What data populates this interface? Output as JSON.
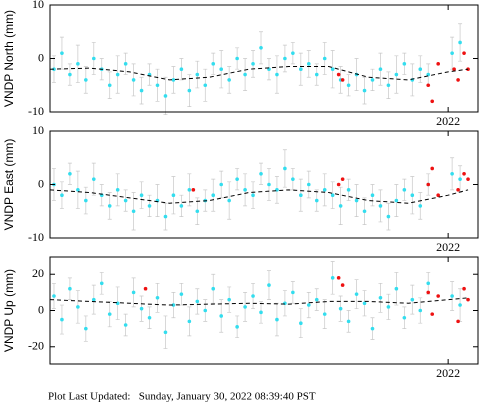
{
  "chart_data": [
    {
      "type": "scatter",
      "ylabel": "VNDP North (mm)",
      "xlim": [
        2020.0,
        2022.15
      ],
      "xticks": [
        2022
      ],
      "ylim": [
        -10,
        10
      ],
      "yticks": [
        -10,
        0,
        10
      ],
      "series": [
        {
          "color": "#33ddee",
          "x": [
            2020.02,
            2020.06,
            2020.1,
            2020.14,
            2020.18,
            2020.22,
            2020.26,
            2020.3,
            2020.34,
            2020.38,
            2020.42,
            2020.46,
            2020.5,
            2020.54,
            2020.58,
            2020.62,
            2020.66,
            2020.7,
            2020.74,
            2020.78,
            2020.82,
            2020.86,
            2020.9,
            2020.94,
            2020.98,
            2021.02,
            2021.06,
            2021.1,
            2021.14,
            2021.18,
            2021.22,
            2021.26,
            2021.3,
            2021.34,
            2021.38,
            2021.42,
            2021.46,
            2021.5,
            2021.54,
            2021.58,
            2021.62,
            2021.66,
            2021.7,
            2021.74,
            2021.78,
            2021.82,
            2021.86,
            2021.9,
            2022.02,
            2022.06
          ],
          "values": [
            -2,
            1,
            -3,
            -1,
            -4,
            0,
            -2,
            -5,
            -3,
            -1,
            -4,
            -6,
            -3,
            -5,
            -7,
            -4,
            -2,
            -6,
            -3,
            -5,
            -1,
            -2,
            -4,
            0,
            -3,
            -1,
            2,
            -2,
            -3,
            0,
            1,
            -2,
            -1,
            -3,
            0,
            -2,
            -4,
            -5,
            -3,
            -6,
            -4,
            -2,
            -5,
            -3,
            -1,
            -4,
            -2,
            -3,
            1,
            3
          ],
          "errors": [
            2.5,
            3,
            2,
            3.5,
            2.5,
            3,
            2,
            2.5,
            3.5,
            2,
            3,
            2.5,
            2,
            3,
            3.5,
            2.5,
            2,
            3,
            2.5,
            3,
            2,
            3.5,
            2.5,
            2,
            3,
            2.5,
            3,
            2,
            3.5,
            2.5,
            2,
            3,
            2.5,
            2,
            3,
            3.5,
            2.5,
            2,
            3,
            2.5,
            2,
            3,
            2.5,
            3.5,
            2,
            3,
            2.5,
            2,
            3,
            3.5
          ]
        },
        {
          "color": "#ee1111",
          "x": [
            2021.45,
            2021.47,
            2021.9,
            2021.92,
            2021.95,
            2022.03,
            2022.05,
            2022.08,
            2022.1
          ],
          "values": [
            -3,
            -4,
            -5,
            -8,
            -1,
            -2,
            -4,
            1,
            -2
          ]
        },
        {
          "color": "#000000",
          "dashed": true,
          "x": [
            2020.0,
            2020.2,
            2020.4,
            2020.6,
            2020.8,
            2021.0,
            2021.2,
            2021.4,
            2021.6,
            2021.8,
            2022.0,
            2022.1
          ],
          "values": [
            -2,
            -1.8,
            -2.5,
            -4,
            -3.5,
            -2,
            -1.5,
            -1.5,
            -3.5,
            -4,
            -2.5,
            -2
          ]
        }
      ]
    },
    {
      "type": "scatter",
      "ylabel": "VNDP East (mm)",
      "xlim": [
        2020.0,
        2022.15
      ],
      "xticks": [
        2022
      ],
      "ylim": [
        -10,
        10
      ],
      "yticks": [
        -10,
        0,
        10
      ],
      "series": [
        {
          "color": "#33ddee",
          "x": [
            2020.02,
            2020.06,
            2020.1,
            2020.14,
            2020.18,
            2020.22,
            2020.26,
            2020.3,
            2020.34,
            2020.38,
            2020.42,
            2020.46,
            2020.5,
            2020.54,
            2020.58,
            2020.62,
            2020.66,
            2020.7,
            2020.74,
            2020.78,
            2020.82,
            2020.86,
            2020.9,
            2020.94,
            2020.98,
            2021.02,
            2021.06,
            2021.1,
            2021.14,
            2021.18,
            2021.22,
            2021.26,
            2021.3,
            2021.34,
            2021.38,
            2021.42,
            2021.46,
            2021.5,
            2021.54,
            2021.58,
            2021.62,
            2021.66,
            2021.7,
            2021.74,
            2021.78,
            2021.82,
            2021.86,
            2021.9,
            2022.02,
            2022.06
          ],
          "values": [
            0,
            -2,
            2,
            -1,
            -3,
            1,
            -2,
            -4,
            -1,
            -3,
            -5,
            -2,
            -4,
            -3,
            -6,
            -2,
            -4,
            -1,
            -5,
            -3,
            -2,
            0,
            -3,
            1,
            -1,
            -2,
            2,
            0,
            -1,
            3,
            1,
            -2,
            0,
            -3,
            -1,
            -2,
            -4,
            -1,
            -3,
            -5,
            -2,
            -4,
            -6,
            -3,
            -1,
            -2,
            -4,
            0,
            2,
            1
          ],
          "errors": [
            3,
            2.5,
            2,
            3.5,
            2.5,
            3,
            2,
            2.5,
            3,
            2,
            3.5,
            2.5,
            2,
            3,
            2.5,
            3.5,
            2,
            3,
            2.5,
            2,
            3,
            2.5,
            3.5,
            2,
            3,
            2.5,
            2,
            3,
            2.5,
            3.5,
            2,
            3,
            2.5,
            2,
            3,
            2.5,
            3.5,
            2,
            3,
            2.5,
            2,
            3,
            2.5,
            3,
            2,
            3.5,
            2.5,
            2,
            3,
            2.5
          ]
        },
        {
          "color": "#ee1111",
          "x": [
            2020.72,
            2021.45,
            2021.47,
            2021.9,
            2021.92,
            2021.95,
            2022.05,
            2022.08,
            2022.1
          ],
          "values": [
            -1,
            0,
            1,
            0,
            3,
            -2,
            -1,
            2,
            1
          ]
        },
        {
          "color": "#000000",
          "dashed": true,
          "x": [
            2020.0,
            2020.2,
            2020.4,
            2020.6,
            2020.8,
            2021.0,
            2021.2,
            2021.4,
            2021.6,
            2021.8,
            2022.0,
            2022.1
          ],
          "values": [
            -1,
            -1.5,
            -2.5,
            -3.5,
            -3,
            -1.5,
            -1,
            -1.5,
            -3,
            -3.5,
            -2,
            -1
          ]
        }
      ]
    },
    {
      "type": "scatter",
      "ylabel": "VNDP Up (mm)",
      "xlim": [
        2020.0,
        2022.15
      ],
      "xticks": [
        2022
      ],
      "ylim": [
        -29.5,
        29.5
      ],
      "yticks": [
        -20,
        0,
        20
      ],
      "series": [
        {
          "color": "#33ddee",
          "x": [
            2020.02,
            2020.06,
            2020.1,
            2020.14,
            2020.18,
            2020.22,
            2020.26,
            2020.3,
            2020.34,
            2020.38,
            2020.42,
            2020.46,
            2020.5,
            2020.54,
            2020.58,
            2020.62,
            2020.66,
            2020.7,
            2020.74,
            2020.78,
            2020.82,
            2020.86,
            2020.9,
            2020.94,
            2020.98,
            2021.02,
            2021.06,
            2021.1,
            2021.14,
            2021.18,
            2021.22,
            2021.26,
            2021.3,
            2021.34,
            2021.38,
            2021.42,
            2021.46,
            2021.5,
            2021.54,
            2021.58,
            2021.62,
            2021.66,
            2021.7,
            2021.74,
            2021.78,
            2021.82,
            2021.86,
            2021.9,
            2022.02,
            2022.06
          ],
          "values": [
            8,
            -5,
            12,
            2,
            -10,
            6,
            15,
            -2,
            4,
            -8,
            10,
            1,
            -4,
            7,
            -12,
            3,
            9,
            -6,
            5,
            0,
            12,
            -3,
            6,
            -9,
            2,
            8,
            -1,
            14,
            -5,
            4,
            10,
            -7,
            3,
            6,
            -2,
            18,
            1,
            -6,
            9,
            4,
            -10,
            7,
            2,
            12,
            -4,
            6,
            0,
            15,
            8,
            3
          ],
          "errors": [
            7,
            8,
            6,
            9,
            7,
            8,
            6,
            7,
            9,
            6,
            8,
            7,
            6,
            8,
            9,
            7,
            6,
            8,
            7,
            6,
            8,
            9,
            7,
            6,
            8,
            7,
            6,
            8,
            9,
            7,
            6,
            8,
            7,
            6,
            8,
            9,
            7,
            6,
            8,
            7,
            6,
            8,
            7,
            9,
            6,
            8,
            7,
            6,
            8,
            9
          ]
        },
        {
          "color": "#ee1111",
          "x": [
            2020.48,
            2021.45,
            2021.47,
            2021.9,
            2021.92,
            2021.95,
            2022.05,
            2022.08,
            2022.1
          ],
          "values": [
            12,
            18,
            14,
            10,
            -2,
            8,
            -6,
            12,
            6
          ]
        },
        {
          "color": "#000000",
          "dashed": true,
          "x": [
            2020.0,
            2020.2,
            2020.4,
            2020.6,
            2020.8,
            2021.0,
            2021.2,
            2021.4,
            2021.6,
            2021.8,
            2022.0,
            2022.1
          ],
          "values": [
            6,
            5,
            4,
            3,
            3.5,
            4,
            3.5,
            5,
            5,
            4,
            6,
            7
          ]
        }
      ]
    }
  ],
  "footer": "Plot Last Updated:   Sunday, January 30, 2022 08:39:40 PST"
}
